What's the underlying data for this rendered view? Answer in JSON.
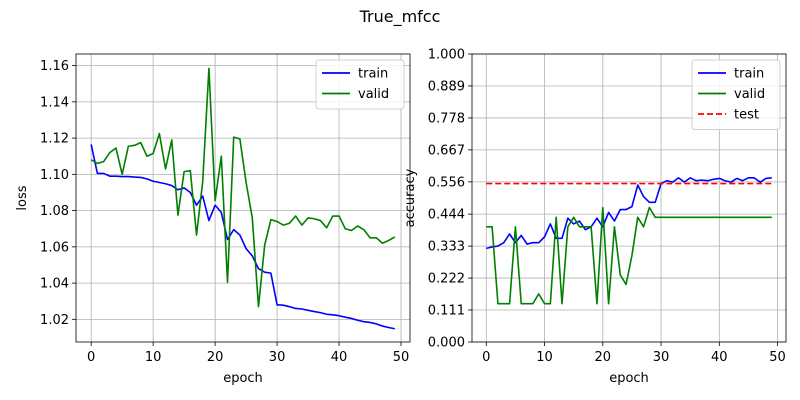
{
  "figure_title": "True_mfcc",
  "colors": {
    "train": "#0000ff",
    "valid": "#008000",
    "test": "#ff0000",
    "grid": "#b0b0b0"
  },
  "chart_data": [
    {
      "type": "line",
      "xlabel": "epoch",
      "ylabel": "loss",
      "xlim": [
        -2.45,
        51.45
      ],
      "ylim": [
        1.0075,
        1.1664
      ],
      "grid": true,
      "legend_position": "top-right",
      "xticks": [
        0,
        10,
        20,
        30,
        40,
        50
      ],
      "yticks": [
        1.02,
        1.04,
        1.06,
        1.08,
        1.1,
        1.12,
        1.14,
        1.16
      ],
      "ytick_labels": [
        "1.02",
        "1.04",
        "1.06",
        "1.08",
        "1.10",
        "1.12",
        "1.14",
        "1.16"
      ],
      "x": [
        0,
        1,
        2,
        3,
        4,
        5,
        6,
        7,
        8,
        9,
        10,
        11,
        12,
        13,
        14,
        15,
        16,
        17,
        18,
        19,
        20,
        21,
        22,
        23,
        24,
        25,
        26,
        27,
        28,
        29,
        30,
        31,
        32,
        33,
        34,
        35,
        36,
        37,
        38,
        39,
        40,
        41,
        42,
        43,
        44,
        45,
        46,
        47,
        48,
        49
      ],
      "series": [
        {
          "name": "train",
          "color_key": "train",
          "style": "solid",
          "values": [
            1.1165,
            1.1005,
            1.1005,
            1.099,
            1.099,
            1.0988,
            1.0988,
            1.0985,
            1.0983,
            1.0975,
            1.0962,
            1.0955,
            1.0948,
            1.0938,
            1.0915,
            1.0925,
            1.09,
            1.083,
            1.088,
            1.0745,
            1.083,
            1.079,
            1.064,
            1.0695,
            1.0665,
            1.059,
            1.055,
            1.048,
            1.046,
            1.0455,
            1.028,
            1.0278,
            1.027,
            1.026,
            1.0257,
            1.025,
            1.0243,
            1.0237,
            1.0228,
            1.0225,
            1.022,
            1.0212,
            1.0205,
            1.0195,
            1.0187,
            1.0183,
            1.0175,
            1.0163,
            1.0155,
            1.0148
          ]
        },
        {
          "name": "valid",
          "color_key": "valid",
          "style": "solid",
          "values": [
            1.108,
            1.106,
            1.107,
            1.112,
            1.1145,
            1.1,
            1.1155,
            1.116,
            1.1175,
            1.11,
            1.1115,
            1.1225,
            1.103,
            1.119,
            1.0775,
            1.1015,
            1.102,
            1.0665,
            1.096,
            1.1585,
            1.0855,
            1.11,
            1.0405,
            1.1205,
            1.1195,
            1.0955,
            1.076,
            1.027,
            1.061,
            1.075,
            1.074,
            1.072,
            1.073,
            1.077,
            1.072,
            1.076,
            1.0755,
            1.0745,
            1.0705,
            1.077,
            1.077,
            1.07,
            1.069,
            1.0715,
            1.0695,
            1.065,
            1.065,
            1.062,
            1.0635,
            1.0655
          ]
        }
      ]
    },
    {
      "type": "line",
      "xlabel": "epoch",
      "ylabel": "accuracy",
      "xlim": [
        -2.45,
        51.45
      ],
      "ylim": [
        0,
        1
      ],
      "grid": true,
      "legend_position": "top-right",
      "xticks": [
        0,
        10,
        20,
        30,
        40,
        50
      ],
      "yticks": [
        0,
        0.111,
        0.222,
        0.333,
        0.444,
        0.556,
        0.667,
        0.778,
        0.889,
        1.0
      ],
      "ytick_labels": [
        "0.000",
        "0.111",
        "0.222",
        "0.333",
        "0.444",
        "0.556",
        "0.667",
        "0.778",
        "0.889",
        "1.000"
      ],
      "x": [
        0,
        1,
        2,
        3,
        4,
        5,
        6,
        7,
        8,
        9,
        10,
        11,
        12,
        13,
        14,
        15,
        16,
        17,
        18,
        19,
        20,
        21,
        22,
        23,
        24,
        25,
        26,
        27,
        28,
        29,
        30,
        31,
        32,
        33,
        34,
        35,
        36,
        37,
        38,
        39,
        40,
        41,
        42,
        43,
        44,
        45,
        46,
        47,
        48,
        49
      ],
      "series": [
        {
          "name": "train",
          "color_key": "train",
          "style": "solid",
          "values": [
            0.325,
            0.33,
            0.333,
            0.345,
            0.375,
            0.345,
            0.37,
            0.34,
            0.345,
            0.345,
            0.365,
            0.41,
            0.36,
            0.36,
            0.43,
            0.41,
            0.42,
            0.39,
            0.4,
            0.43,
            0.4,
            0.45,
            0.42,
            0.46,
            0.46,
            0.47,
            0.545,
            0.505,
            0.485,
            0.485,
            0.55,
            0.56,
            0.555,
            0.57,
            0.555,
            0.57,
            0.56,
            0.562,
            0.56,
            0.565,
            0.568,
            0.56,
            0.555,
            0.568,
            0.56,
            0.57,
            0.57,
            0.555,
            0.568,
            0.57
          ]
        },
        {
          "name": "valid",
          "color_key": "valid",
          "style": "solid",
          "values": [
            0.4,
            0.4,
            0.133,
            0.133,
            0.133,
            0.4,
            0.133,
            0.133,
            0.133,
            0.167,
            0.133,
            0.133,
            0.433,
            0.133,
            0.4,
            0.433,
            0.4,
            0.4,
            0.4,
            0.133,
            0.467,
            0.133,
            0.4,
            0.233,
            0.2,
            0.3,
            0.433,
            0.4,
            0.467,
            0.433,
            0.433,
            0.433,
            0.433,
            0.433,
            0.433,
            0.433,
            0.433,
            0.433,
            0.433,
            0.433,
            0.433,
            0.433,
            0.433,
            0.433,
            0.433,
            0.433,
            0.433,
            0.433,
            0.433,
            0.433
          ]
        },
        {
          "name": "test",
          "color_key": "test",
          "style": "dashed",
          "values": [
            0.55,
            0.55,
            0.55,
            0.55,
            0.55,
            0.55,
            0.55,
            0.55,
            0.55,
            0.55,
            0.55,
            0.55,
            0.55,
            0.55,
            0.55,
            0.55,
            0.55,
            0.55,
            0.55,
            0.55,
            0.55,
            0.55,
            0.55,
            0.55,
            0.55,
            0.55,
            0.55,
            0.55,
            0.55,
            0.55,
            0.55,
            0.55,
            0.55,
            0.55,
            0.55,
            0.55,
            0.55,
            0.55,
            0.55,
            0.55,
            0.55,
            0.55,
            0.55,
            0.55,
            0.55,
            0.55,
            0.55,
            0.55,
            0.55,
            0.55
          ]
        }
      ]
    }
  ]
}
